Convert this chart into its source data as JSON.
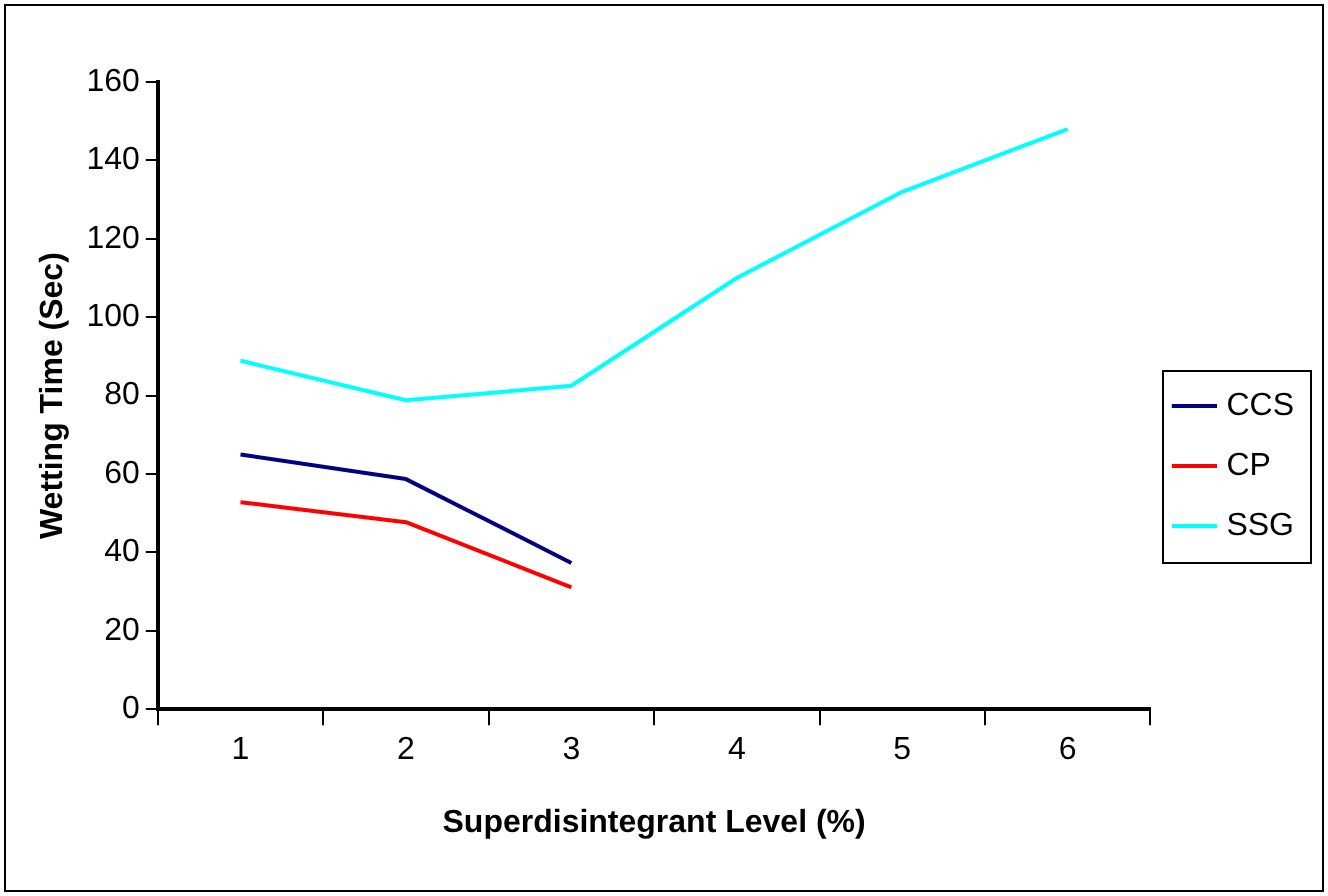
{
  "chart_data": {
    "type": "line",
    "xlabel": "Superdisintegrant Level (%)",
    "ylabel": "Wetting Time (Sec)",
    "categories": [
      "1",
      "2",
      "3",
      "4",
      "5",
      "6"
    ],
    "series": [
      {
        "name": "CCS",
        "color": "#000080",
        "values": [
          65,
          58.7,
          37.3,
          null,
          null,
          null
        ]
      },
      {
        "name": "CP",
        "color": "#ff0000",
        "values": [
          52.8,
          47.7,
          31.1,
          null,
          null,
          null
        ]
      },
      {
        "name": "SSG",
        "color": "#00ffff",
        "values": [
          88.9,
          78.8,
          82.5,
          110,
          132,
          148
        ]
      }
    ],
    "ylim": [
      0,
      160
    ],
    "yticks": [
      0,
      20,
      40,
      60,
      80,
      100,
      120,
      140,
      160
    ],
    "grid": false,
    "legend": "right",
    "marker": "none",
    "line_style": "solid"
  }
}
